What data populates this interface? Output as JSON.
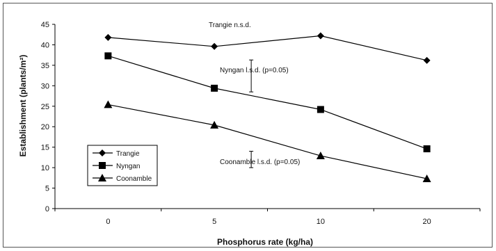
{
  "chart_data": {
    "type": "line",
    "categories": [
      "0",
      "5",
      "10",
      "20"
    ],
    "series": [
      {
        "name": "Trangie",
        "values": [
          41.8,
          39.6,
          42.2,
          36.2
        ],
        "marker": "diamond"
      },
      {
        "name": "Nyngan",
        "values": [
          37.3,
          29.4,
          24.2,
          14.6
        ],
        "marker": "square"
      },
      {
        "name": "Coonamble",
        "values": [
          25.4,
          20.4,
          12.9,
          7.3
        ],
        "marker": "triangle"
      }
    ],
    "xlabel": "Phosphorus rate (kg/ha)",
    "ylabel": "Establishment (plants/m²)",
    "ylim": [
      0,
      45
    ],
    "yticks": [
      0,
      5,
      10,
      15,
      20,
      25,
      30,
      35,
      40,
      45
    ],
    "grid": false,
    "legend_position": "bottom-left",
    "annotations": [
      {
        "id": "trangie",
        "text": "Trangie n.s.d."
      },
      {
        "id": "nyngan",
        "text": "Nyngan l.s.d. (p=0.05)",
        "lsd_range": [
          28.5,
          36.3
        ]
      },
      {
        "id": "coonamble",
        "text": "Coonamble l.s.d. (p=0.05)",
        "lsd_range": [
          10.0,
          14.0
        ]
      }
    ],
    "colors": {
      "line": "#000000"
    }
  }
}
